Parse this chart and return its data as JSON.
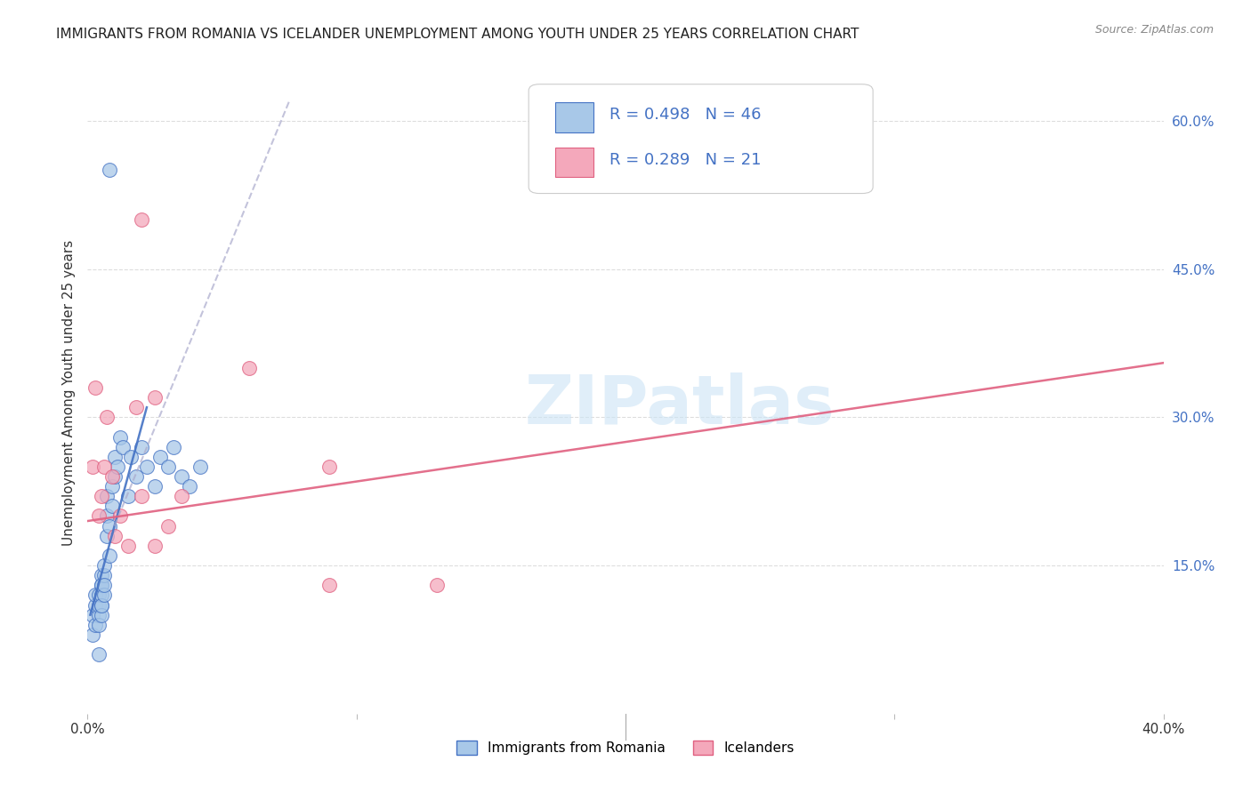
{
  "title": "IMMIGRANTS FROM ROMANIA VS ICELANDER UNEMPLOYMENT AMONG YOUTH UNDER 25 YEARS CORRELATION CHART",
  "source": "Source: ZipAtlas.com",
  "ylabel": "Unemployment Among Youth under 25 years",
  "xlim": [
    0.0,
    0.4
  ],
  "ylim": [
    0.0,
    0.65
  ],
  "yticks_right": [
    0.15,
    0.3,
    0.45,
    0.6
  ],
  "ytick_labels_right": [
    "15.0%",
    "30.0%",
    "45.0%",
    "60.0%"
  ],
  "watermark": "ZIPatlas",
  "color_romania": "#a8c8e8",
  "color_icelanders": "#f4a8bb",
  "color_romania_dark": "#4472c4",
  "color_icelanders_dark": "#e06080",
  "background_color": "#ffffff",
  "grid_color": "#dddddd",
  "romania_x": [
    0.002,
    0.002,
    0.003,
    0.003,
    0.003,
    0.004,
    0.004,
    0.004,
    0.004,
    0.005,
    0.005,
    0.005,
    0.005,
    0.005,
    0.005,
    0.005,
    0.006,
    0.006,
    0.006,
    0.006,
    0.007,
    0.007,
    0.007,
    0.008,
    0.008,
    0.009,
    0.009,
    0.01,
    0.01,
    0.011,
    0.012,
    0.013,
    0.015,
    0.016,
    0.018,
    0.02,
    0.022,
    0.025,
    0.027,
    0.03,
    0.032,
    0.035,
    0.038,
    0.042,
    0.008,
    0.004
  ],
  "romania_y": [
    0.1,
    0.08,
    0.11,
    0.09,
    0.12,
    0.1,
    0.11,
    0.12,
    0.09,
    0.13,
    0.11,
    0.12,
    0.14,
    0.1,
    0.13,
    0.11,
    0.14,
    0.15,
    0.12,
    0.13,
    0.18,
    0.22,
    0.2,
    0.16,
    0.19,
    0.21,
    0.23,
    0.24,
    0.26,
    0.25,
    0.28,
    0.27,
    0.22,
    0.26,
    0.24,
    0.27,
    0.25,
    0.23,
    0.26,
    0.25,
    0.27,
    0.24,
    0.23,
    0.25,
    0.55,
    0.06
  ],
  "iceland_x": [
    0.002,
    0.003,
    0.004,
    0.005,
    0.006,
    0.007,
    0.009,
    0.01,
    0.012,
    0.015,
    0.018,
    0.02,
    0.025,
    0.03,
    0.035,
    0.06,
    0.09,
    0.13,
    0.09,
    0.02,
    0.025
  ],
  "iceland_y": [
    0.25,
    0.33,
    0.2,
    0.22,
    0.25,
    0.3,
    0.24,
    0.18,
    0.2,
    0.17,
    0.31,
    0.22,
    0.32,
    0.19,
    0.22,
    0.35,
    0.13,
    0.13,
    0.25,
    0.5,
    0.17
  ],
  "rom_line_x0": 0.0,
  "rom_line_y0": 0.08,
  "rom_line_x1": 0.065,
  "rom_line_y1": 0.6,
  "ice_line_x0": 0.0,
  "ice_line_y0": 0.195,
  "ice_line_x1": 0.4,
  "ice_line_y1": 0.355
}
